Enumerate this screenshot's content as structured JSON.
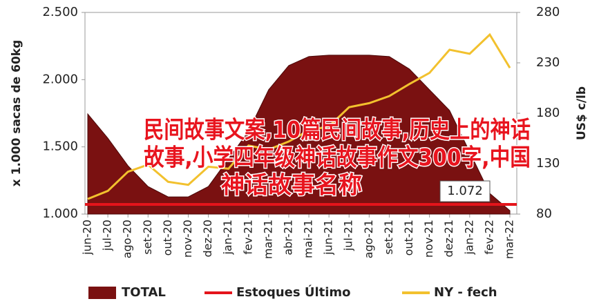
{
  "chart_data": {
    "type": "area_line",
    "y_label": "x 1.000 sacas de 60kg",
    "y2_label": "US$ c/lb",
    "categories": [
      "jun-20",
      "jul-20",
      "ago-20",
      "set-20",
      "out-20",
      "nov-20",
      "dez-20",
      "jan-21",
      "fev-21",
      "mar-21",
      "abr-21",
      "mai-21",
      "jun-21",
      "jul-21",
      "ago-21",
      "set-21",
      "out-21",
      "nov-21",
      "dez-21",
      "jan-22",
      "fev-22",
      "mar-22"
    ],
    "series": [
      {
        "name": "TOTAL",
        "color": "#7a1111",
        "axis": "y",
        "values": [
          1745,
          1565,
          1360,
          1205,
          1128,
          1128,
          1205,
          1411,
          1617,
          1925,
          2105,
          2172,
          2182,
          2182,
          2182,
          2172,
          2079,
          1925,
          1771,
          1462,
          1154,
          1026
        ]
      },
      {
        "name": "NY - fech",
        "color": "#f2c12e",
        "axis": "y2",
        "values": [
          95,
          103,
          122,
          129,
          112,
          109,
          127,
          125,
          148,
          144,
          152,
          163,
          167,
          186,
          190,
          197,
          209,
          220,
          243,
          239,
          258,
          225
        ]
      }
    ],
    "reference_line": {
      "name": "Estoques Último",
      "color": "#e4141b",
      "value": 1072,
      "label": "1.072"
    },
    "ylim": [
      1000,
      2500
    ],
    "yticks": [
      {
        "value": 1000,
        "label": "1.000"
      },
      {
        "value": 1500,
        "label": "1.500"
      },
      {
        "value": 2000,
        "label": "2.000"
      },
      {
        "value": 2500,
        "label": "2.500"
      }
    ],
    "y2lim": [
      80,
      280
    ],
    "y2ticks": [
      80,
      130,
      180,
      230,
      280
    ],
    "overlay_lines": [
      "民间故事文案,10篇民间故事,历史上的神话",
      "故事,小学四年级神话故事作文300字,中国",
      "神话故事名称"
    ]
  }
}
